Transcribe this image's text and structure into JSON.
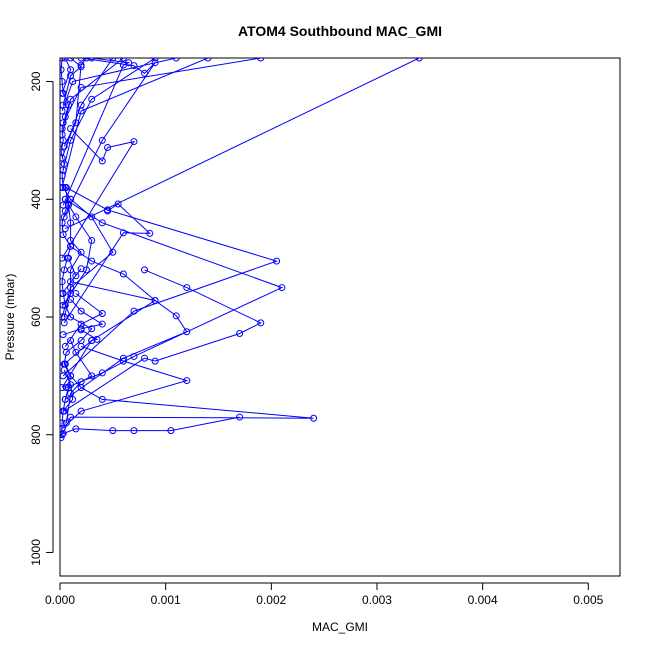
{
  "chart_data": {
    "type": "line",
    "title": "ATOM4 Southbound MAC_GMI",
    "xlabel": "MAC_GMI",
    "ylabel": "Pressure (mbar)",
    "xlim": [
      0,
      0.0053
    ],
    "ylim": [
      1040,
      160
    ],
    "y_reversed": true,
    "x_ticks": [
      "0.000",
      "0.001",
      "0.002",
      "0.003",
      "0.004",
      "0.005"
    ],
    "y_ticks": [
      "200",
      "400",
      "600",
      "800",
      "1000"
    ],
    "line_color": "#0000ff",
    "marker": "open-circle",
    "grid": false,
    "series": [
      {
        "points": [
          [
            1e-05,
            805
          ],
          [
            2e-05,
            780
          ],
          [
            3e-05,
            760
          ],
          [
            5e-05,
            740
          ],
          [
            8e-05,
            720
          ],
          [
            0.0001,
            700
          ],
          [
            4e-05,
            680
          ],
          [
            6e-05,
            660
          ],
          [
            0.0002,
            640
          ],
          [
            0.0003,
            620
          ],
          [
            0.0001,
            600
          ],
          [
            5e-05,
            580
          ],
          [
            3e-05,
            560
          ],
          [
            2e-05,
            540
          ],
          [
            4e-05,
            520
          ],
          [
            7e-05,
            500
          ],
          [
            0.0001,
            480
          ],
          [
            3e-05,
            460
          ],
          [
            2e-05,
            440
          ],
          [
            5e-05,
            420
          ],
          [
            0.0001,
            400
          ],
          [
            3e-05,
            380
          ],
          [
            2e-05,
            360
          ],
          [
            4e-05,
            340
          ],
          [
            1e-05,
            320
          ],
          [
            3e-05,
            300
          ],
          [
            2e-05,
            280
          ],
          [
            5e-05,
            260
          ],
          [
            8e-05,
            240
          ],
          [
            3e-05,
            220
          ],
          [
            2e-05,
            200
          ],
          [
            1e-05,
            180
          ],
          [
            2e-05,
            160
          ]
        ]
      },
      {
        "points": [
          [
            2e-05,
            800
          ],
          [
            0.0001,
            770
          ],
          [
            0.0024,
            772
          ],
          [
            0.0004,
            740
          ],
          [
            0.0002,
            720
          ],
          [
            0.0001,
            700
          ],
          [
            5e-05,
            680
          ]
        ]
      },
      {
        "points": [
          [
            3e-05,
            798
          ],
          [
            0.00015,
            790
          ],
          [
            0.0005,
            793
          ],
          [
            0.0007,
            793
          ],
          [
            0.00105,
            793
          ],
          [
            0.0017,
            770
          ]
        ]
      },
      {
        "points": [
          [
            2e-05,
            790
          ],
          [
            0.0002,
            760
          ],
          [
            0.0012,
            708
          ],
          [
            0.0006,
            675
          ],
          [
            0.0002,
            650
          ]
        ]
      },
      {
        "points": [
          [
            4e-05,
            760
          ],
          [
            0.0008,
            670
          ],
          [
            0.0009,
            675
          ],
          [
            0.0017,
            628
          ],
          [
            0.0019,
            610
          ],
          [
            0.0012,
            550
          ],
          [
            0.0008,
            520
          ]
        ]
      },
      {
        "points": [
          [
            5e-05,
            740
          ],
          [
            0.0006,
            670
          ],
          [
            0.0012,
            625
          ],
          [
            0.0011,
            598
          ],
          [
            0.0009,
            572
          ],
          [
            0.0001,
            540
          ]
        ]
      },
      {
        "points": [
          [
            6e-05,
            720
          ],
          [
            0.0004,
            695
          ],
          [
            0.0007,
            667
          ],
          [
            0.0021,
            550
          ],
          [
            0.0004,
            440
          ],
          [
            5e-05,
            400
          ]
        ]
      },
      {
        "points": [
          [
            3e-05,
            700
          ],
          [
            0.0007,
            590
          ],
          [
            0.00205,
            505
          ],
          [
            0.00045,
            418
          ],
          [
            6e-05,
            380
          ]
        ]
      },
      {
        "points": [
          [
            4e-05,
            680
          ],
          [
            0.0003,
            640
          ],
          [
            0.0009,
            572
          ],
          [
            0.0006,
            527
          ],
          [
            0.0003,
            505
          ],
          [
            0.0001,
            480
          ]
        ]
      },
      {
        "points": [
          [
            5e-05,
            650
          ],
          [
            0.0002,
            612
          ],
          [
            0.0004,
            594
          ],
          [
            0.00015,
            560
          ]
        ]
      },
      {
        "points": [
          [
            3e-05,
            630
          ],
          [
            0.0002,
            620
          ],
          [
            0.0004,
            612
          ],
          [
            0.0002,
            590
          ],
          [
            0.0001,
            570
          ]
        ]
      },
      {
        "points": [
          [
            4e-05,
            610
          ],
          [
            0.0006,
            457
          ],
          [
            0.00085,
            458
          ],
          [
            0.00055,
            408
          ],
          [
            0.00045,
            420
          ]
        ]
      },
      {
        "points": [
          [
            2e-05,
            600
          ],
          [
            0.0001,
            550
          ],
          [
            0.0005,
            490
          ],
          [
            0.0003,
            430
          ],
          [
            0.0001,
            400
          ]
        ]
      },
      {
        "points": [
          [
            3e-05,
            580
          ],
          [
            0.00025,
            520
          ],
          [
            0.0003,
            470
          ],
          [
            0.00015,
            430
          ],
          [
            5e-05,
            400
          ]
        ]
      },
      {
        "points": [
          [
            2e-05,
            500
          ],
          [
            0.0007,
            302
          ],
          [
            0.00045,
            312
          ],
          [
            0.0004,
            335
          ],
          [
            0.0001,
            280
          ]
        ]
      },
      {
        "points": [
          [
            5e-05,
            450
          ],
          [
            0.0034,
            160
          ]
        ]
      },
      {
        "points": [
          [
            4e-05,
            430
          ],
          [
            0.0004,
            300
          ],
          [
            0.0009,
            168
          ],
          [
            0.0008,
            186
          ],
          [
            0.0007,
            173
          ],
          [
            0.0002,
            160
          ]
        ]
      },
      {
        "points": [
          [
            3e-05,
            410
          ],
          [
            0.0006,
            172
          ],
          [
            0.00065,
            168
          ],
          [
            0.0003,
            160
          ]
        ]
      },
      {
        "points": [
          [
            2e-05,
            380
          ],
          [
            0.0002,
            250
          ],
          [
            0.0014,
            160
          ]
        ]
      },
      {
        "points": [
          [
            3e-05,
            350
          ],
          [
            0.0001,
            300
          ],
          [
            0.0003,
            230
          ],
          [
            0.0009,
            160
          ]
        ]
      },
      {
        "points": [
          [
            2e-05,
            330
          ],
          [
            0.0002,
            240
          ],
          [
            0.0005,
            160
          ]
        ]
      },
      {
        "points": [
          [
            4e-05,
            310
          ],
          [
            0.00015,
            270
          ],
          [
            0.0002,
            172
          ],
          [
            0.00025,
            160
          ]
        ]
      },
      {
        "points": [
          [
            2e-05,
            290
          ],
          [
            0.0001,
            230
          ],
          [
            0.0006,
            160
          ]
        ]
      },
      {
        "points": [
          [
            3e-05,
            270
          ],
          [
            0.0002,
            210
          ],
          [
            0.0019,
            160
          ]
        ]
      },
      {
        "points": [
          [
            2e-05,
            250
          ],
          [
            0.00012,
            200
          ],
          [
            0.0011,
            160
          ]
        ]
      },
      {
        "points": [
          [
            3e-05,
            240
          ],
          [
            0.0001,
            190
          ],
          [
            0.0002,
            175
          ],
          [
            0.0001,
            160
          ]
        ]
      },
      {
        "points": [
          [
            2e-05,
            220
          ],
          [
            0.0001,
            180
          ],
          [
            5e-05,
            160
          ]
        ]
      },
      {
        "points": [
          [
            4e-05,
            600
          ],
          [
            0.0001,
            560
          ],
          [
            0.0001,
            520
          ],
          [
            0.0002,
            490
          ],
          [
            0.0001,
            470
          ],
          [
            0.0001,
            440
          ],
          [
            8e-05,
            410
          ],
          [
            5e-05,
            380
          ]
        ]
      },
      {
        "points": [
          [
            6e-05,
            780
          ],
          [
            0.0001,
            730
          ],
          [
            0.0002,
            710
          ],
          [
            0.0003,
            700
          ],
          [
            0.00015,
            660
          ],
          [
            0.0001,
            640
          ]
        ]
      },
      {
        "points": [
          [
            2e-05,
            560
          ],
          [
            0.0002,
            518
          ],
          [
            0.00015,
            530
          ],
          [
            8e-05,
            500
          ]
        ]
      },
      {
        "points": [
          [
            3e-05,
            760
          ],
          [
            0.00012,
            740
          ],
          [
            0.0001,
            715
          ],
          [
            4e-05,
            690
          ]
        ]
      },
      {
        "points": [
          [
            2e-05,
            720
          ],
          [
            0.0003,
            640
          ],
          [
            0.00035,
            638
          ],
          [
            0.0002,
            622
          ]
        ]
      }
    ]
  }
}
